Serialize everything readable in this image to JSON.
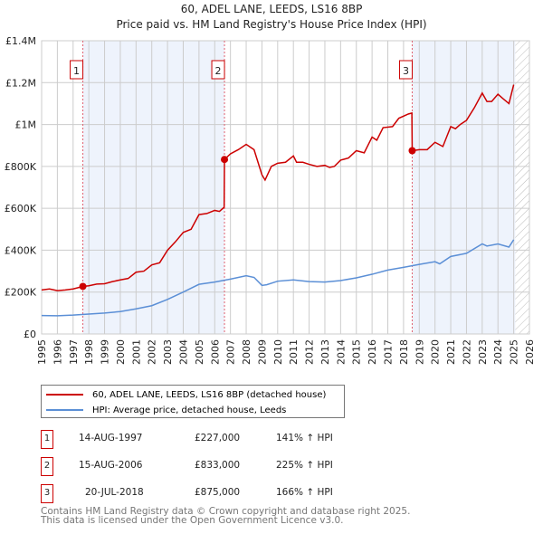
{
  "title": "60, ADEL LANE, LEEDS, LS16 8BP",
  "subtitle": "Price paid vs. HM Land Registry's House Price Index (HPI)",
  "chart_data": {
    "type": "line",
    "title": "60, ADEL LANE, LEEDS, LS16 8BP",
    "subtitle": "Price paid vs. HM Land Registry's House Price Index (HPI)",
    "xlim": [
      1995,
      2026
    ],
    "ylim": [
      0,
      1400000
    ],
    "x_ticks": [
      "1995",
      "1996",
      "1997",
      "1998",
      "1999",
      "2000",
      "2001",
      "2002",
      "2003",
      "2004",
      "2005",
      "2006",
      "2007",
      "2008",
      "2009",
      "2010",
      "2011",
      "2012",
      "2013",
      "2014",
      "2015",
      "2016",
      "2017",
      "2018",
      "2019",
      "2020",
      "2021",
      "2022",
      "2023",
      "2024",
      "2025",
      "2026"
    ],
    "y_ticks": [
      {
        "v": 0,
        "label": "£0"
      },
      {
        "v": 200000,
        "label": "£200K"
      },
      {
        "v": 400000,
        "label": "£400K"
      },
      {
        "v": 600000,
        "label": "£600K"
      },
      {
        "v": 800000,
        "label": "£800K"
      },
      {
        "v": 1000000,
        "label": "£1M"
      },
      {
        "v": 1200000,
        "label": "£1.2M"
      },
      {
        "v": 1400000,
        "label": "£1.4M"
      }
    ],
    "grid": true,
    "shaded_ranges": [
      [
        1997.62,
        2006.62
      ],
      [
        2018.55,
        2025.1
      ]
    ],
    "future_hatch": [
      2025.1,
      2026
    ],
    "series": [
      {
        "name": "60, ADEL LANE, LEEDS, LS16 8BP (detached house)",
        "color": "#cc0000",
        "x": [
          1995,
          1995.5,
          1996,
          1996.5,
          1997,
          1997.62,
          1998,
          1998.5,
          1999,
          1999.5,
          2000,
          2000.5,
          2001,
          2001.5,
          2002,
          2002.5,
          2003,
          2003.5,
          2004,
          2004.5,
          2005,
          2005.5,
          2006,
          2006.3,
          2006.6,
          2006.62,
          2007,
          2007.5,
          2008,
          2008.5,
          2009,
          2009.2,
          2009.6,
          2010,
          2010.5,
          2011,
          2011.2,
          2011.6,
          2012,
          2012.5,
          2013,
          2013.3,
          2013.6,
          2014,
          2014.5,
          2015,
          2015.5,
          2016,
          2016.3,
          2016.7,
          2017.3,
          2017.7,
          2018.3,
          2018.53,
          2018.55,
          2019,
          2019.5,
          2020,
          2020.5,
          2021,
          2021.3,
          2021.6,
          2022,
          2022.5,
          2023,
          2023.3,
          2023.6,
          2024,
          2024.3,
          2024.7,
          2025
        ],
        "y": [
          210000,
          215000,
          207000,
          210000,
          215000,
          227000,
          230000,
          238000,
          240000,
          250000,
          258000,
          265000,
          295000,
          300000,
          330000,
          340000,
          400000,
          440000,
          485000,
          500000,
          570000,
          575000,
          590000,
          585000,
          605000,
          833000,
          860000,
          880000,
          905000,
          880000,
          760000,
          735000,
          800000,
          815000,
          820000,
          850000,
          820000,
          820000,
          810000,
          800000,
          805000,
          795000,
          800000,
          830000,
          840000,
          875000,
          865000,
          940000,
          925000,
          985000,
          990000,
          1030000,
          1050000,
          1055000,
          875000,
          880000,
          880000,
          915000,
          895000,
          990000,
          980000,
          1000000,
          1020000,
          1080000,
          1150000,
          1110000,
          1110000,
          1145000,
          1125000,
          1100000,
          1190000
        ]
      },
      {
        "name": "HPI: Average price, detached house, Leeds",
        "color": "#5b8fd6",
        "x": [
          1995,
          1996,
          1997,
          1998,
          1999,
          2000,
          2001,
          2002,
          2003,
          2004,
          2005,
          2006,
          2007,
          2008,
          2008.5,
          2009,
          2009.3,
          2010,
          2011,
          2012,
          2013,
          2014,
          2015,
          2016,
          2017,
          2018,
          2019,
          2020,
          2020.3,
          2021,
          2022,
          2023,
          2023.3,
          2024,
          2024.7,
          2025
        ],
        "y": [
          88000,
          87000,
          90000,
          95000,
          100000,
          107000,
          120000,
          135000,
          165000,
          200000,
          237000,
          248000,
          262000,
          278000,
          270000,
          232000,
          235000,
          252000,
          258000,
          250000,
          248000,
          255000,
          268000,
          285000,
          305000,
          318000,
          332000,
          345000,
          335000,
          370000,
          385000,
          430000,
          420000,
          430000,
          415000,
          450000
        ]
      }
    ],
    "sales": [
      {
        "n": "1",
        "x": 1997.62,
        "y": 227000,
        "date": "14-AUG-1997",
        "price": "£227,000",
        "hpi": "141% ↑ HPI"
      },
      {
        "n": "2",
        "x": 2006.62,
        "y": 833000,
        "date": "15-AUG-2006",
        "price": "£833,000",
        "hpi": "225% ↑ HPI"
      },
      {
        "n": "3",
        "x": 2018.55,
        "y": 875000,
        "date": "20-JUL-2018",
        "price": "£875,000",
        "hpi": "166% ↑ HPI"
      }
    ]
  },
  "footer": [
    "Contains HM Land Registry data © Crown copyright and database right 2025.",
    "This data is licensed under the Open Government Licence v3.0."
  ]
}
